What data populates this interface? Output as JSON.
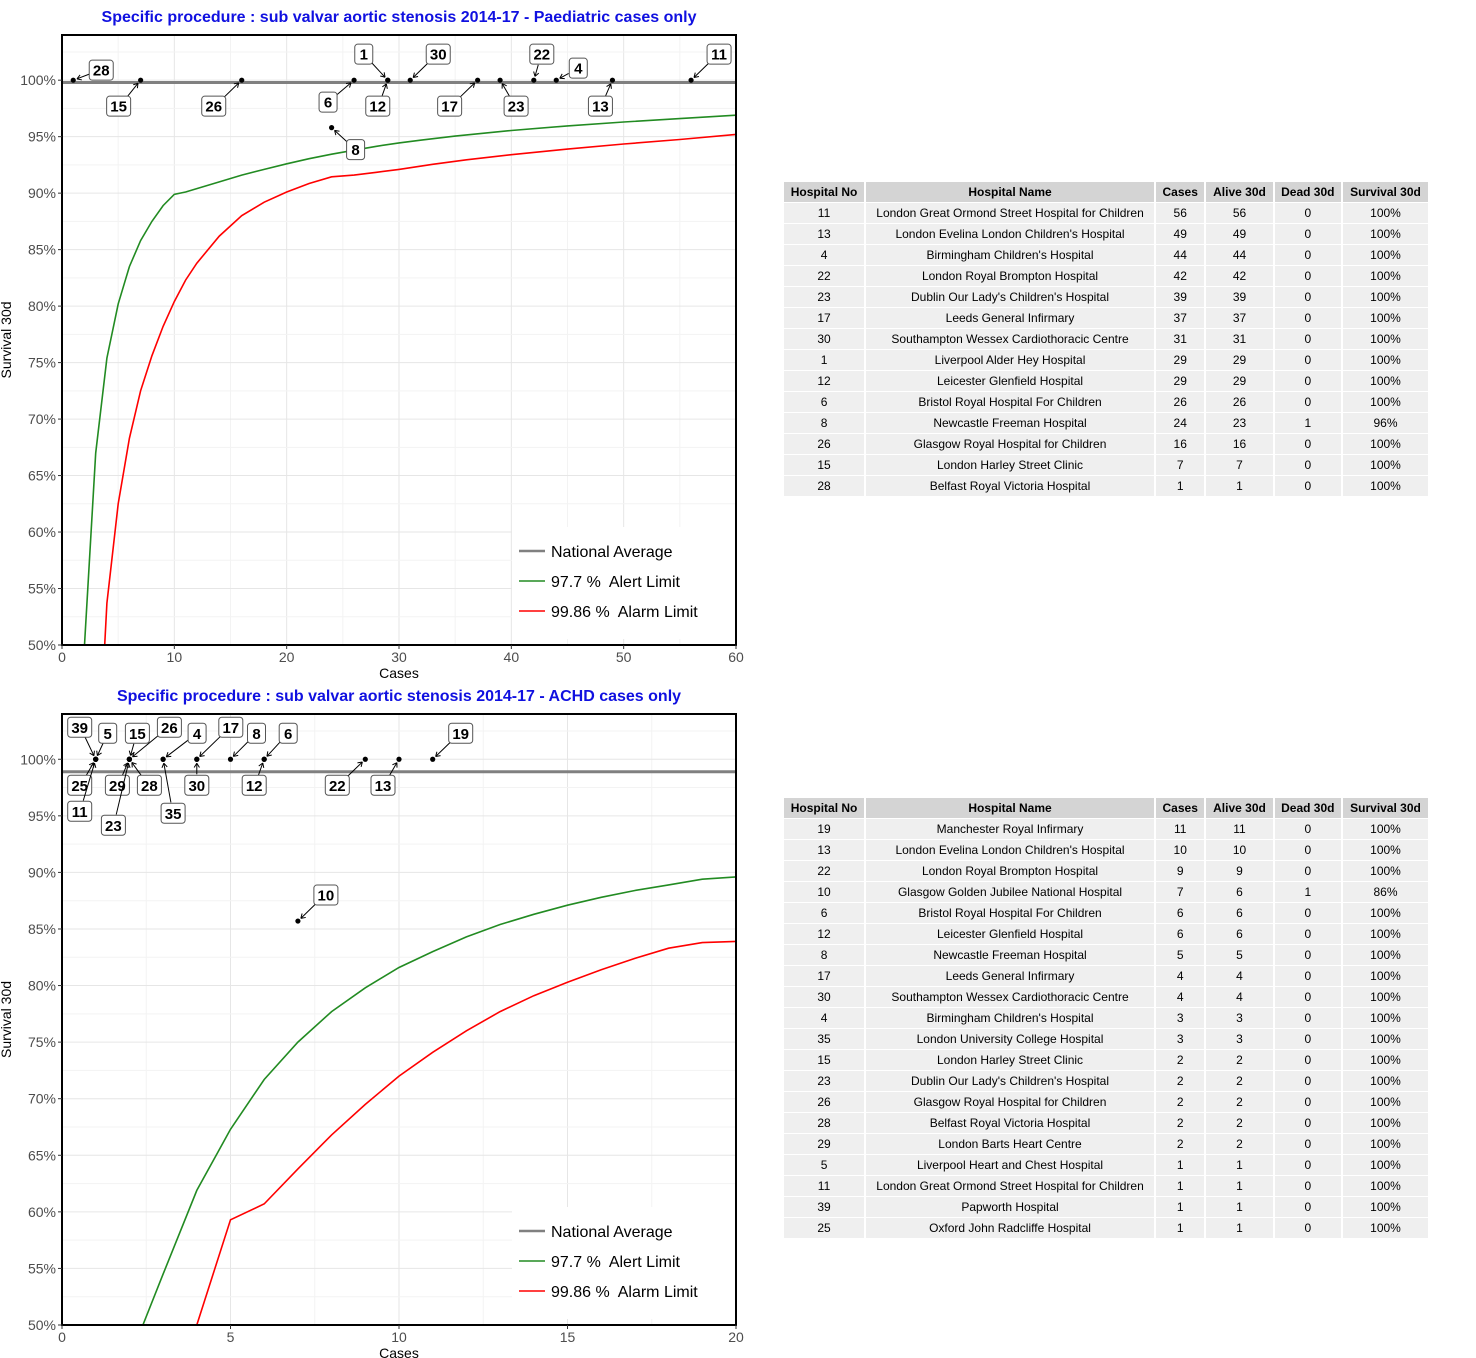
{
  "chart_data": [
    {
      "type": "scatter",
      "title": "Specific procedure : sub valvar aortic stenosis 2014-17 - Paediatric cases only",
      "xlabel": "Cases",
      "ylabel": "Survival 30d",
      "xlim": [
        0,
        60
      ],
      "ylim": [
        50,
        104
      ],
      "x_ticks": [
        0,
        10,
        20,
        30,
        40,
        50,
        60
      ],
      "y_ticks": [
        50,
        55,
        60,
        65,
        70,
        75,
        80,
        85,
        90,
        95,
        100
      ],
      "y_tick_labels": [
        "50%",
        "55%",
        "60%",
        "65%",
        "70%",
        "75%",
        "80%",
        "85%",
        "90%",
        "95%",
        "100%"
      ],
      "grid": true,
      "legend_position": "bottom-right",
      "national_average": 99.8,
      "legend": [
        "National Average",
        "97.7 %  Alert Limit",
        "99.86 %  Alarm Limit"
      ],
      "colors": {
        "average": "#808080",
        "alert": "#228B22",
        "alarm": "#FF0000",
        "title": "#1010e0"
      },
      "alert_curve": [
        [
          2,
          50
        ],
        [
          3,
          67
        ],
        [
          4,
          75.4
        ],
        [
          5,
          80.2
        ],
        [
          6,
          83.5
        ],
        [
          7,
          85.8
        ],
        [
          8,
          87.5
        ],
        [
          9,
          88.9
        ],
        [
          10,
          89.9
        ],
        [
          11,
          90.1
        ],
        [
          12,
          90.4
        ],
        [
          14,
          91
        ],
        [
          16,
          91.6
        ],
        [
          18,
          92.1
        ],
        [
          20,
          92.6
        ],
        [
          22,
          93.05
        ],
        [
          24,
          93.45
        ],
        [
          26,
          93.8
        ],
        [
          28,
          94.15
        ],
        [
          30,
          94.45
        ],
        [
          32,
          94.7
        ],
        [
          35,
          95.05
        ],
        [
          40,
          95.55
        ],
        [
          45,
          95.95
        ],
        [
          50,
          96.3
        ],
        [
          55,
          96.6
        ],
        [
          60,
          96.9
        ]
      ],
      "alarm_curve": [
        [
          3.8,
          50
        ],
        [
          4,
          53.7
        ],
        [
          5,
          62.5
        ],
        [
          6,
          68.3
        ],
        [
          7,
          72.5
        ],
        [
          8,
          75.6
        ],
        [
          9,
          78.2
        ],
        [
          10,
          80.4
        ],
        [
          11,
          82.3
        ],
        [
          12,
          83.8
        ],
        [
          14,
          86.2
        ],
        [
          16,
          88
        ],
        [
          18,
          89.2
        ],
        [
          20,
          90.1
        ],
        [
          22,
          90.85
        ],
        [
          24,
          91.45
        ],
        [
          26,
          91.6
        ],
        [
          28,
          91.85
        ],
        [
          30,
          92.1
        ],
        [
          33,
          92.55
        ],
        [
          36,
          92.95
        ],
        [
          40,
          93.4
        ],
        [
          45,
          93.9
        ],
        [
          50,
          94.35
        ],
        [
          55,
          94.75
        ],
        [
          60,
          95.2
        ]
      ],
      "points": [
        {
          "label": "28",
          "x": 1,
          "y": 100
        },
        {
          "label": "15",
          "x": 7,
          "y": 100
        },
        {
          "label": "26",
          "x": 16,
          "y": 100
        },
        {
          "label": "8",
          "x": 24,
          "y": 95.8
        },
        {
          "label": "6",
          "x": 26,
          "y": 100
        },
        {
          "label": "1",
          "x": 29,
          "y": 100
        },
        {
          "label": "12",
          "x": 29,
          "y": 100
        },
        {
          "label": "30",
          "x": 31,
          "y": 100
        },
        {
          "label": "17",
          "x": 37,
          "y": 100
        },
        {
          "label": "23",
          "x": 39,
          "y": 100
        },
        {
          "label": "22",
          "x": 42,
          "y": 100
        },
        {
          "label": "4",
          "x": 44,
          "y": 100
        },
        {
          "label": "13",
          "x": 49,
          "y": 100
        },
        {
          "label": "11",
          "x": 56,
          "y": 100
        }
      ]
    },
    {
      "type": "scatter",
      "title": "Specific procedure : sub valvar aortic stenosis 2014-17 - ACHD cases only",
      "xlabel": "Cases",
      "ylabel": "Survival 30d",
      "xlim": [
        0,
        20
      ],
      "ylim": [
        50,
        104
      ],
      "x_ticks": [
        0,
        5,
        10,
        15,
        20
      ],
      "y_ticks": [
        50,
        55,
        60,
        65,
        70,
        75,
        80,
        85,
        90,
        95,
        100
      ],
      "y_tick_labels": [
        "50%",
        "55%",
        "60%",
        "65%",
        "70%",
        "75%",
        "80%",
        "85%",
        "90%",
        "95%",
        "100%"
      ],
      "grid": true,
      "legend_position": "bottom-right",
      "national_average": 98.9,
      "legend": [
        "National Average",
        "97.7 %  Alert Limit",
        "99.86 %  Alarm Limit"
      ],
      "colors": {
        "average": "#808080",
        "alert": "#228B22",
        "alarm": "#FF0000",
        "title": "#1010e0"
      },
      "alert_curve": [
        [
          2.4,
          50
        ],
        [
          3,
          54.5
        ],
        [
          4,
          61.9
        ],
        [
          5,
          67.3
        ],
        [
          6,
          71.7
        ],
        [
          7,
          75
        ],
        [
          8,
          77.7
        ],
        [
          9,
          79.8
        ],
        [
          10,
          81.6
        ],
        [
          11,
          83
        ],
        [
          12,
          84.3
        ],
        [
          13,
          85.4
        ],
        [
          14,
          86.3
        ],
        [
          15,
          87.1
        ],
        [
          16,
          87.8
        ],
        [
          17,
          88.4
        ],
        [
          18,
          88.9
        ],
        [
          19,
          89.4
        ],
        [
          20,
          89.6
        ]
      ],
      "alarm_curve": [
        [
          4,
          50
        ],
        [
          5,
          59.3
        ],
        [
          6,
          60.7
        ],
        [
          7,
          63.8
        ],
        [
          8,
          66.8
        ],
        [
          9,
          69.5
        ],
        [
          10,
          72
        ],
        [
          11,
          74.1
        ],
        [
          12,
          76
        ],
        [
          13,
          77.7
        ],
        [
          14,
          79.1
        ],
        [
          15,
          80.3
        ],
        [
          16,
          81.4
        ],
        [
          17,
          82.4
        ],
        [
          18,
          83.3
        ],
        [
          19,
          83.8
        ],
        [
          20,
          83.9
        ]
      ],
      "points": [
        {
          "label": "39",
          "x": 1,
          "y": 100
        },
        {
          "label": "5",
          "x": 1,
          "y": 100
        },
        {
          "label": "25",
          "x": 1,
          "y": 100
        },
        {
          "label": "11",
          "x": 1,
          "y": 100
        },
        {
          "label": "15",
          "x": 2,
          "y": 100
        },
        {
          "label": "29",
          "x": 2,
          "y": 100
        },
        {
          "label": "23",
          "x": 2,
          "y": 100
        },
        {
          "label": "28",
          "x": 2,
          "y": 100
        },
        {
          "label": "26",
          "x": 2,
          "y": 100
        },
        {
          "label": "35",
          "x": 3,
          "y": 100
        },
        {
          "label": "4",
          "x": 3,
          "y": 100
        },
        {
          "label": "30",
          "x": 4,
          "y": 100
        },
        {
          "label": "17",
          "x": 4,
          "y": 100
        },
        {
          "label": "8",
          "x": 5,
          "y": 100
        },
        {
          "label": "12",
          "x": 6,
          "y": 100
        },
        {
          "label": "6",
          "x": 6,
          "y": 100
        },
        {
          "label": "10",
          "x": 7,
          "y": 85.7
        },
        {
          "label": "22",
          "x": 9,
          "y": 100
        },
        {
          "label": "13",
          "x": 10,
          "y": 100
        },
        {
          "label": "19",
          "x": 11,
          "y": 100
        }
      ]
    }
  ],
  "tables": [
    {
      "columns": [
        "Hospital No",
        "Hospital Name",
        "Cases",
        "Alive 30d",
        "Dead 30d",
        "Survival 30d"
      ],
      "rows": [
        [
          "11",
          "London Great Ormond Street Hospital for Children",
          "56",
          "56",
          "0",
          "100%"
        ],
        [
          "13",
          "London Evelina London Children's Hospital",
          "49",
          "49",
          "0",
          "100%"
        ],
        [
          "4",
          "Birmingham Children's Hospital",
          "44",
          "44",
          "0",
          "100%"
        ],
        [
          "22",
          "London Royal Brompton Hospital",
          "42",
          "42",
          "0",
          "100%"
        ],
        [
          "23",
          "Dublin Our Lady's Children's Hospital",
          "39",
          "39",
          "0",
          "100%"
        ],
        [
          "17",
          "Leeds General Infirmary",
          "37",
          "37",
          "0",
          "100%"
        ],
        [
          "30",
          "Southampton Wessex Cardiothoracic Centre",
          "31",
          "31",
          "0",
          "100%"
        ],
        [
          "1",
          "Liverpool Alder Hey Hospital",
          "29",
          "29",
          "0",
          "100%"
        ],
        [
          "12",
          "Leicester Glenfield Hospital",
          "29",
          "29",
          "0",
          "100%"
        ],
        [
          "6",
          "Bristol Royal Hospital For Children",
          "26",
          "26",
          "0",
          "100%"
        ],
        [
          "8",
          "Newcastle Freeman Hospital",
          "24",
          "23",
          "1",
          "96%"
        ],
        [
          "26",
          "Glasgow Royal Hospital for Children",
          "16",
          "16",
          "0",
          "100%"
        ],
        [
          "15",
          "London Harley Street Clinic",
          "7",
          "7",
          "0",
          "100%"
        ],
        [
          "28",
          "Belfast Royal Victoria Hospital",
          "1",
          "1",
          "0",
          "100%"
        ]
      ]
    },
    {
      "columns": [
        "Hospital No",
        "Hospital Name",
        "Cases",
        "Alive 30d",
        "Dead 30d",
        "Survival 30d"
      ],
      "rows": [
        [
          "19",
          "Manchester Royal Infirmary",
          "11",
          "11",
          "0",
          "100%"
        ],
        [
          "13",
          "London Evelina London Children's Hospital",
          "10",
          "10",
          "0",
          "100%"
        ],
        [
          "22",
          "London Royal Brompton Hospital",
          "9",
          "9",
          "0",
          "100%"
        ],
        [
          "10",
          "Glasgow Golden Jubilee National Hospital",
          "7",
          "6",
          "1",
          "86%"
        ],
        [
          "6",
          "Bristol Royal Hospital For Children",
          "6",
          "6",
          "0",
          "100%"
        ],
        [
          "12",
          "Leicester Glenfield Hospital",
          "6",
          "6",
          "0",
          "100%"
        ],
        [
          "8",
          "Newcastle Freeman Hospital",
          "5",
          "5",
          "0",
          "100%"
        ],
        [
          "17",
          "Leeds General Infirmary",
          "4",
          "4",
          "0",
          "100%"
        ],
        [
          "30",
          "Southampton Wessex Cardiothoracic Centre",
          "4",
          "4",
          "0",
          "100%"
        ],
        [
          "4",
          "Birmingham Children's Hospital",
          "3",
          "3",
          "0",
          "100%"
        ],
        [
          "35",
          "London University College Hospital",
          "3",
          "3",
          "0",
          "100%"
        ],
        [
          "15",
          "London Harley Street Clinic",
          "2",
          "2",
          "0",
          "100%"
        ],
        [
          "23",
          "Dublin Our Lady's Children's Hospital",
          "2",
          "2",
          "0",
          "100%"
        ],
        [
          "26",
          "Glasgow Royal Hospital for Children",
          "2",
          "2",
          "0",
          "100%"
        ],
        [
          "28",
          "Belfast Royal Victoria Hospital",
          "2",
          "2",
          "0",
          "100%"
        ],
        [
          "29",
          "London Barts Heart Centre",
          "2",
          "2",
          "0",
          "100%"
        ],
        [
          "5",
          "Liverpool Heart and Chest Hospital",
          "1",
          "1",
          "0",
          "100%"
        ],
        [
          "11",
          "London Great Ormond Street Hospital for Children",
          "1",
          "1",
          "0",
          "100%"
        ],
        [
          "39",
          "Papworth Hospital",
          "1",
          "1",
          "0",
          "100%"
        ],
        [
          "25",
          "Oxford John Radcliffe Hospital",
          "1",
          "1",
          "0",
          "100%"
        ]
      ]
    }
  ]
}
